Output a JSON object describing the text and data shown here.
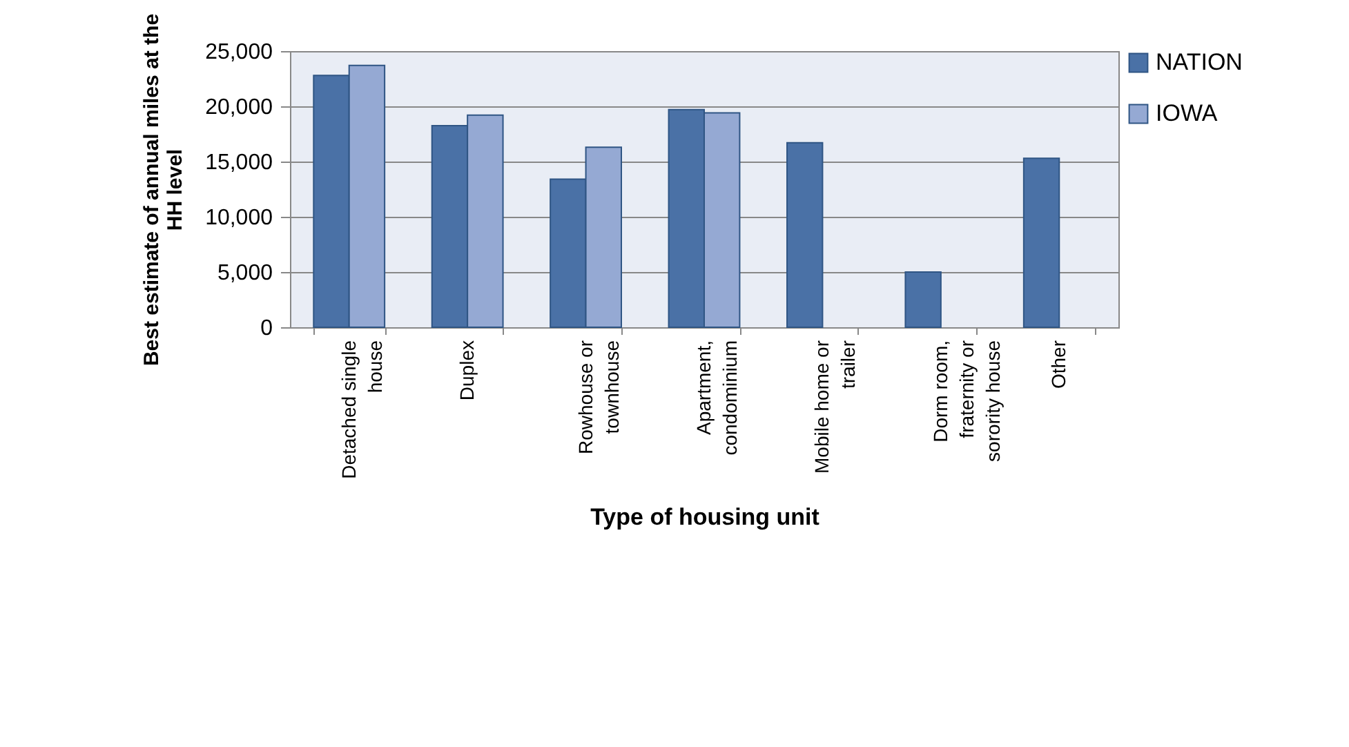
{
  "chart_data": {
    "type": "bar",
    "xlabel": "Type of housing unit",
    "ylabel": "Best estimate of annual miles at the HH level",
    "categories": [
      "Detached single house",
      "Duplex",
      "Rowhouse or townhouse",
      "Apartment, condominium",
      "Mobile home or trailer",
      "Dorm room, fraternity or sorority house",
      "Other"
    ],
    "series": [
      {
        "name": "NATION",
        "color": "#4a71a6",
        "values": [
          22800,
          18250,
          13400,
          19700,
          16700,
          5000,
          15300
        ]
      },
      {
        "name": "IOWA",
        "color": "#95a9d3",
        "values": [
          23700,
          19200,
          16300,
          19400,
          null,
          null,
          null
        ]
      }
    ],
    "ylim": [
      0,
      25000
    ],
    "yticks": [
      0,
      {
        "value": 5000,
        "label": "5,000"
      },
      {
        "value": 10000,
        "label": "10,000"
      },
      {
        "value": 15000,
        "label": "15,000"
      },
      {
        "value": 20000,
        "label": "20,000"
      },
      {
        "value": 25000,
        "label": "25,000"
      }
    ],
    "grid": "y",
    "legend": "right"
  }
}
